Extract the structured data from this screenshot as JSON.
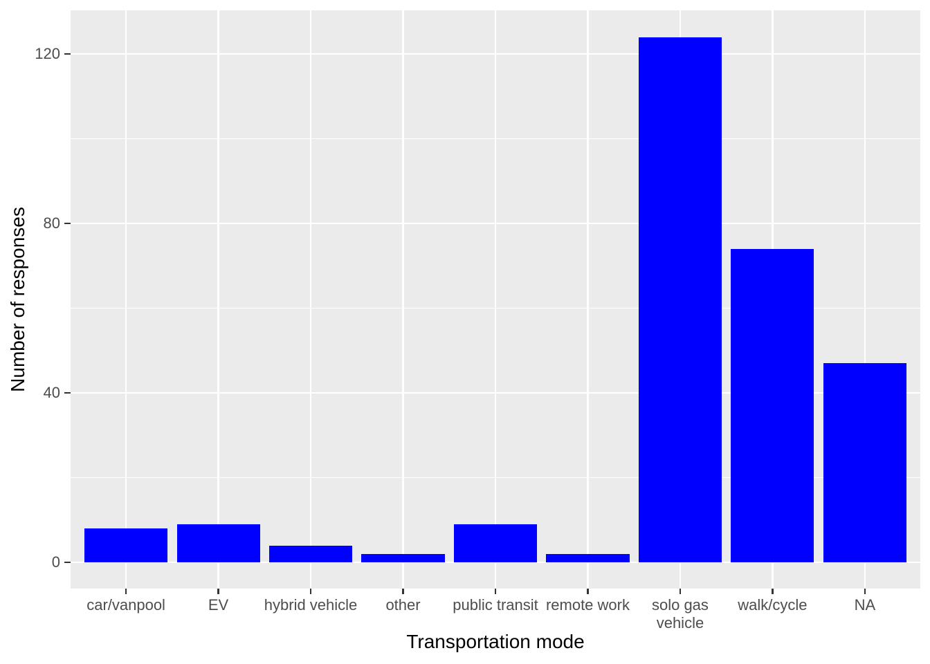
{
  "chart_data": {
    "type": "bar",
    "title": "",
    "xlabel": "Transportation mode",
    "ylabel": "Number of responses",
    "categories": [
      "car/vanpool",
      "EV",
      "hybrid vehicle",
      "other",
      "public transit",
      "remote work",
      "solo gas\nvehicle",
      "walk/cycle",
      "NA"
    ],
    "values": [
      8,
      9,
      4,
      2,
      9,
      2,
      124,
      74,
      47
    ],
    "series_name": "Number of responses",
    "y_ticks": [
      0,
      40,
      80,
      120
    ],
    "y_minor_ticks": [
      20,
      60,
      100
    ],
    "ylim": [
      -6.2,
      130.3
    ],
    "grid": "horizontal major+minor white, vertical major white at category centers",
    "legend_position": "none",
    "colors": {
      "bar": "#0000FF",
      "panel_background": "#EBEBEB",
      "gridline": "#FFFFFF",
      "tick_label": "#4D4D4D",
      "axis_title": "#000000",
      "tick_mark": "#333333",
      "figure_background": "#FFFFFF"
    }
  }
}
